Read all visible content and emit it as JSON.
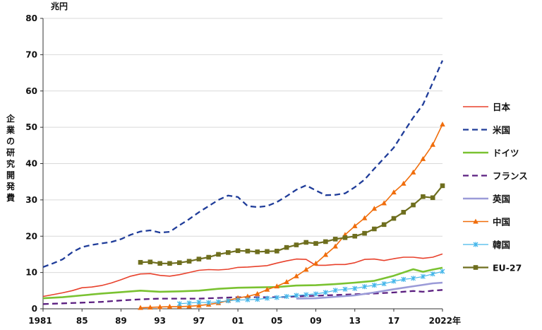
{
  "chart_data": {
    "type": "line",
    "unit_label": "兆円",
    "ylabel": "企業の研究開発費",
    "ylim": [
      0,
      80
    ],
    "yticks": [
      0,
      10,
      20,
      30,
      40,
      50,
      60,
      70,
      80
    ],
    "xlim": [
      1981,
      2022
    ],
    "xtick_years": [
      1981,
      1985,
      1989,
      1993,
      1997,
      2001,
      2005,
      2009,
      2013,
      2017,
      2022
    ],
    "xtick_labels": [
      "1981",
      "85",
      "89",
      "93",
      "97",
      "01",
      "05",
      "09",
      "13",
      "17",
      "2022年"
    ],
    "legend_position": "right",
    "series": [
      {
        "name": "日本",
        "color": "#e8412c",
        "dash": "solid",
        "width": 1.6,
        "marker": "none",
        "points": [
          [
            1981,
            3.4
          ],
          [
            1982,
            3.9
          ],
          [
            1983,
            4.4
          ],
          [
            1984,
            5.0
          ],
          [
            1985,
            5.8
          ],
          [
            1986,
            6.0
          ],
          [
            1987,
            6.4
          ],
          [
            1988,
            7.1
          ],
          [
            1989,
            8.0
          ],
          [
            1990,
            9.0
          ],
          [
            1991,
            9.6
          ],
          [
            1992,
            9.7
          ],
          [
            1993,
            9.2
          ],
          [
            1994,
            9.0
          ],
          [
            1995,
            9.4
          ],
          [
            1996,
            10.0
          ],
          [
            1997,
            10.6
          ],
          [
            1998,
            10.8
          ],
          [
            1999,
            10.7
          ],
          [
            2000,
            10.9
          ],
          [
            2001,
            11.4
          ],
          [
            2002,
            11.5
          ],
          [
            2003,
            11.7
          ],
          [
            2004,
            11.9
          ],
          [
            2005,
            12.6
          ],
          [
            2006,
            13.2
          ],
          [
            2007,
            13.7
          ],
          [
            2008,
            13.6
          ],
          [
            2009,
            12.0
          ],
          [
            2010,
            12.0
          ],
          [
            2011,
            12.2
          ],
          [
            2012,
            12.2
          ],
          [
            2013,
            12.7
          ],
          [
            2014,
            13.6
          ],
          [
            2015,
            13.7
          ],
          [
            2016,
            13.3
          ],
          [
            2017,
            13.8
          ],
          [
            2018,
            14.2
          ],
          [
            2019,
            14.2
          ],
          [
            2020,
            13.9
          ],
          [
            2021,
            14.2
          ],
          [
            2022,
            15.1
          ]
        ]
      },
      {
        "name": "米国",
        "color": "#1f3c99",
        "dash": "dashed",
        "width": 2.3,
        "marker": "none",
        "points": [
          [
            1981,
            11.5
          ],
          [
            1982,
            12.5
          ],
          [
            1983,
            13.6
          ],
          [
            1984,
            15.6
          ],
          [
            1985,
            17.0
          ],
          [
            1986,
            17.6
          ],
          [
            1987,
            18.0
          ],
          [
            1988,
            18.4
          ],
          [
            1989,
            19.2
          ],
          [
            1990,
            20.4
          ],
          [
            1991,
            21.3
          ],
          [
            1992,
            21.6
          ],
          [
            1993,
            21.0
          ],
          [
            1994,
            21.2
          ],
          [
            1995,
            23.0
          ],
          [
            1996,
            24.7
          ],
          [
            1997,
            26.6
          ],
          [
            1998,
            28.3
          ],
          [
            1999,
            30.0
          ],
          [
            2000,
            31.2
          ],
          [
            2001,
            30.8
          ],
          [
            2002,
            28.3
          ],
          [
            2003,
            28.0
          ],
          [
            2004,
            28.3
          ],
          [
            2005,
            29.4
          ],
          [
            2006,
            31.0
          ],
          [
            2007,
            32.8
          ],
          [
            2008,
            34.0
          ],
          [
            2009,
            32.6
          ],
          [
            2010,
            31.3
          ],
          [
            2011,
            31.4
          ],
          [
            2012,
            31.8
          ],
          [
            2013,
            33.5
          ],
          [
            2014,
            35.6
          ],
          [
            2015,
            38.6
          ],
          [
            2016,
            41.5
          ],
          [
            2017,
            44.4
          ],
          [
            2018,
            48.6
          ],
          [
            2019,
            52.7
          ],
          [
            2020,
            56.3
          ],
          [
            2021,
            62.3
          ],
          [
            2022,
            68.4
          ]
        ]
      },
      {
        "name": "ドイツ",
        "color": "#7ac231",
        "dash": "solid",
        "width": 2.6,
        "marker": "none",
        "points": [
          [
            1981,
            2.9
          ],
          [
            1983,
            3.2
          ],
          [
            1985,
            3.7
          ],
          [
            1987,
            4.2
          ],
          [
            1989,
            4.6
          ],
          [
            1991,
            5.0
          ],
          [
            1993,
            4.7
          ],
          [
            1995,
            4.8
          ],
          [
            1997,
            5.0
          ],
          [
            1999,
            5.5
          ],
          [
            2001,
            5.8
          ],
          [
            2003,
            5.9
          ],
          [
            2005,
            6.0
          ],
          [
            2007,
            6.4
          ],
          [
            2009,
            6.5
          ],
          [
            2011,
            6.8
          ],
          [
            2013,
            7.2
          ],
          [
            2015,
            7.7
          ],
          [
            2017,
            9.1
          ],
          [
            2019,
            10.9
          ],
          [
            2020,
            10.2
          ],
          [
            2021,
            10.8
          ],
          [
            2022,
            11.3
          ]
        ]
      },
      {
        "name": "フランス",
        "color": "#5b1f80",
        "dash": "dashed",
        "width": 2.3,
        "marker": "none",
        "points": [
          [
            1981,
            1.3
          ],
          [
            1983,
            1.5
          ],
          [
            1985,
            1.7
          ],
          [
            1987,
            1.9
          ],
          [
            1989,
            2.3
          ],
          [
            1991,
            2.6
          ],
          [
            1993,
            2.8
          ],
          [
            1995,
            2.8
          ],
          [
            1997,
            2.8
          ],
          [
            1999,
            3.0
          ],
          [
            2001,
            3.2
          ],
          [
            2003,
            3.2
          ],
          [
            2005,
            3.2
          ],
          [
            2007,
            3.4
          ],
          [
            2009,
            3.6
          ],
          [
            2011,
            3.8
          ],
          [
            2013,
            4.0
          ],
          [
            2015,
            4.2
          ],
          [
            2017,
            4.5
          ],
          [
            2019,
            4.9
          ],
          [
            2020,
            4.7
          ],
          [
            2021,
            5.0
          ],
          [
            2022,
            5.2
          ]
        ]
      },
      {
        "name": "英国",
        "color": "#9b9bd8",
        "dash": "solid",
        "width": 2.6,
        "marker": "none",
        "points": [
          [
            2007,
            2.8
          ],
          [
            2009,
            2.9
          ],
          [
            2011,
            3.3
          ],
          [
            2013,
            3.7
          ],
          [
            2015,
            4.5
          ],
          [
            2017,
            5.4
          ],
          [
            2019,
            6.2
          ],
          [
            2020,
            6.6
          ],
          [
            2021,
            7.0
          ],
          [
            2022,
            7.2
          ]
        ]
      },
      {
        "name": "中国",
        "color": "#f06d0b",
        "dash": "solid",
        "width": 1.6,
        "marker": "triangle",
        "points": [
          [
            1991,
            0.3
          ],
          [
            1992,
            0.4
          ],
          [
            1993,
            0.5
          ],
          [
            1994,
            0.6
          ],
          [
            1995,
            0.6
          ],
          [
            1996,
            0.7
          ],
          [
            1997,
            0.9
          ],
          [
            1998,
            1.2
          ],
          [
            1999,
            1.6
          ],
          [
            2000,
            2.3
          ],
          [
            2001,
            3.0
          ],
          [
            2002,
            3.4
          ],
          [
            2003,
            4.1
          ],
          [
            2004,
            5.3
          ],
          [
            2005,
            6.2
          ],
          [
            2006,
            7.4
          ],
          [
            2007,
            9.0
          ],
          [
            2008,
            10.8
          ],
          [
            2009,
            12.5
          ],
          [
            2010,
            14.9
          ],
          [
            2011,
            17.2
          ],
          [
            2012,
            20.4
          ],
          [
            2013,
            22.8
          ],
          [
            2014,
            25.0
          ],
          [
            2015,
            27.6
          ],
          [
            2016,
            29.1
          ],
          [
            2017,
            32.1
          ],
          [
            2018,
            34.5
          ],
          [
            2019,
            37.6
          ],
          [
            2020,
            41.3
          ],
          [
            2021,
            45.2
          ],
          [
            2022,
            50.8
          ]
        ]
      },
      {
        "name": "韓国",
        "color": "#44b6ea",
        "dash": "solid",
        "width": 1.2,
        "marker": "cross",
        "points": [
          [
            1995,
            1.4
          ],
          [
            1996,
            1.6
          ],
          [
            1997,
            1.8
          ],
          [
            1998,
            1.7
          ],
          [
            1999,
            1.9
          ],
          [
            2000,
            2.2
          ],
          [
            2001,
            2.4
          ],
          [
            2002,
            2.5
          ],
          [
            2003,
            2.6
          ],
          [
            2004,
            2.9
          ],
          [
            2005,
            3.1
          ],
          [
            2006,
            3.4
          ],
          [
            2007,
            3.7
          ],
          [
            2008,
            3.9
          ],
          [
            2009,
            4.1
          ],
          [
            2010,
            4.5
          ],
          [
            2011,
            5.1
          ],
          [
            2012,
            5.4
          ],
          [
            2013,
            5.6
          ],
          [
            2014,
            6.1
          ],
          [
            2015,
            6.5
          ],
          [
            2016,
            6.9
          ],
          [
            2017,
            7.6
          ],
          [
            2018,
            8.1
          ],
          [
            2019,
            8.4
          ],
          [
            2020,
            8.9
          ],
          [
            2021,
            9.6
          ],
          [
            2022,
            10.3
          ]
        ]
      },
      {
        "name": "EU-27",
        "color": "#6e6e1e",
        "dash": "solid",
        "width": 2.2,
        "marker": "square",
        "points": [
          [
            1991,
            12.8
          ],
          [
            1992,
            12.9
          ],
          [
            1993,
            12.5
          ],
          [
            1994,
            12.5
          ],
          [
            1995,
            12.7
          ],
          [
            1996,
            13.1
          ],
          [
            1997,
            13.7
          ],
          [
            1998,
            14.2
          ],
          [
            1999,
            15.0
          ],
          [
            2000,
            15.5
          ],
          [
            2001,
            16.0
          ],
          [
            2002,
            15.9
          ],
          [
            2003,
            15.7
          ],
          [
            2004,
            15.8
          ],
          [
            2005,
            15.9
          ],
          [
            2006,
            16.9
          ],
          [
            2007,
            17.6
          ],
          [
            2008,
            18.3
          ],
          [
            2009,
            18.0
          ],
          [
            2010,
            18.5
          ],
          [
            2011,
            19.2
          ],
          [
            2012,
            19.6
          ],
          [
            2013,
            20.0
          ],
          [
            2014,
            20.8
          ],
          [
            2015,
            22.0
          ],
          [
            2016,
            23.2
          ],
          [
            2017,
            24.9
          ],
          [
            2018,
            26.6
          ],
          [
            2019,
            28.6
          ],
          [
            2020,
            30.9
          ],
          [
            2021,
            30.6
          ],
          [
            2022,
            33.9
          ]
        ]
      }
    ]
  }
}
